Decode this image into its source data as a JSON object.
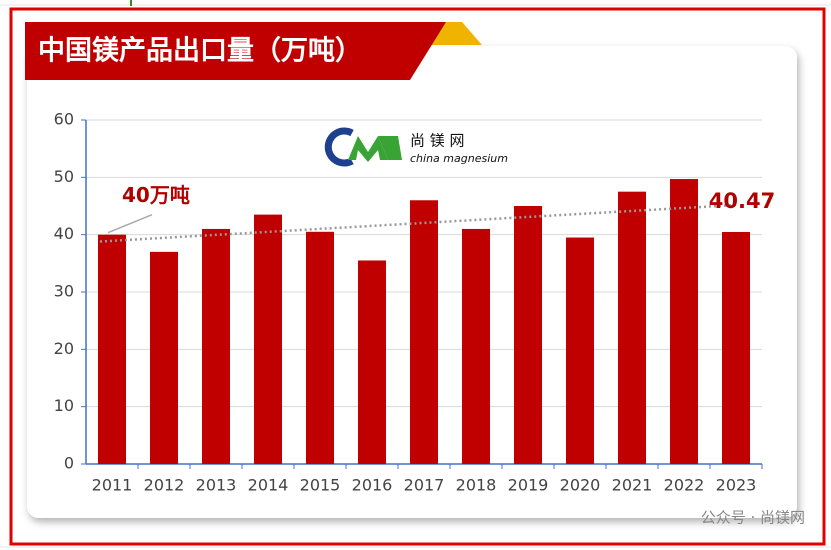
{
  "chart_data": {
    "type": "bar",
    "title": "中国镁产品出口量（万吨）",
    "categories": [
      "2011",
      "2012",
      "2013",
      "2014",
      "2015",
      "2016",
      "2017",
      "2018",
      "2019",
      "2020",
      "2021",
      "2022",
      "2023"
    ],
    "values": [
      40,
      37,
      41,
      43.5,
      40.5,
      35.5,
      46,
      41,
      45,
      39.5,
      47.5,
      49.7,
      40.47
    ],
    "value_labels": [
      "40万吨",
      null,
      null,
      null,
      null,
      null,
      null,
      null,
      null,
      null,
      null,
      null,
      "40.47"
    ],
    "color": "#c00000",
    "ylim": [
      0,
      60
    ],
    "yticks": [
      0,
      10,
      20,
      30,
      40,
      50,
      60
    ],
    "grid": true,
    "trendline": true,
    "logo_text": "尚 镁 网",
    "logo_subtext": "china magnesium"
  },
  "watermark": "公众号 · 尚镁网"
}
